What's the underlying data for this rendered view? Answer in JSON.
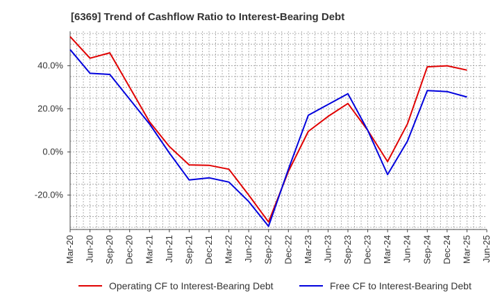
{
  "chart_data": {
    "type": "line",
    "title": "[6369]  Trend of Cashflow Ratio to Interest-Bearing Debt",
    "xlabel": "",
    "ylabel": "",
    "x": [
      "Mar-20",
      "Jun-20",
      "Sep-20",
      "Dec-20",
      "Mar-21",
      "Jun-21",
      "Sep-21",
      "Dec-21",
      "Mar-22",
      "Jun-22",
      "Sep-22",
      "Dec-22",
      "Mar-23",
      "Jun-23",
      "Sep-23",
      "Dec-23",
      "Mar-24",
      "Jun-24",
      "Sep-24",
      "Dec-24",
      "Mar-25",
      "Jun-25"
    ],
    "ylim": [
      -36,
      56
    ],
    "yticks": [
      -20,
      0,
      20,
      40
    ],
    "ytick_labels": [
      "-20.0%",
      "0.0%",
      "20.0%",
      "40.0%"
    ],
    "grid": true,
    "legend_position": "bottom",
    "series": [
      {
        "name": "Operating CF to Interest-Bearing Debt",
        "color": "#e00000",
        "values": [
          53.5,
          43.5,
          46.0,
          30.0,
          14.0,
          2.5,
          -6.0,
          -6.2,
          -8.0,
          -20.0,
          -32.5,
          -9.0,
          9.5,
          16.5,
          22.5,
          10.0,
          -4.5,
          13.0,
          39.5,
          40.0,
          38.0,
          null
        ]
      },
      {
        "name": "Free CF to Interest-Bearing Debt",
        "color": "#0000dd",
        "values": [
          47.5,
          36.5,
          36.0,
          24.5,
          13.0,
          -0.5,
          -13.0,
          -12.0,
          -14.0,
          -23.0,
          -34.5,
          -8.0,
          17.0,
          22.0,
          27.0,
          10.0,
          -10.5,
          5.0,
          28.5,
          28.0,
          25.5,
          null
        ]
      }
    ]
  }
}
